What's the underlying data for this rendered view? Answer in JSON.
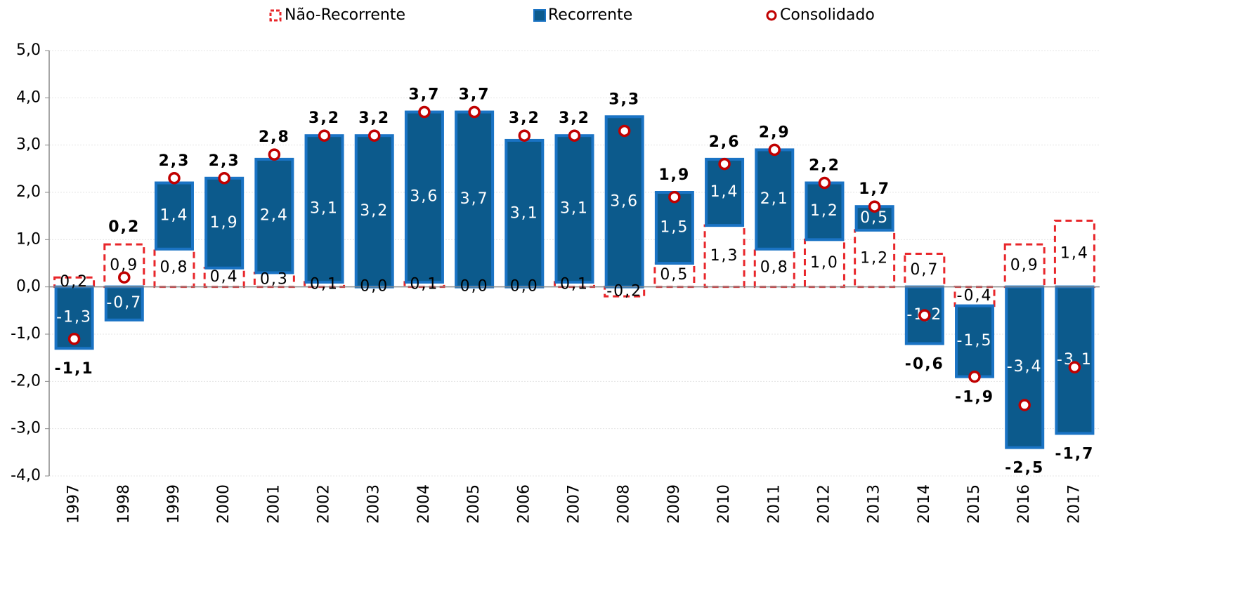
{
  "chart_data": {
    "type": "bar",
    "categories": [
      "1997",
      "1998",
      "1999",
      "2000",
      "2001",
      "2002",
      "2003",
      "2004",
      "2005",
      "2006",
      "2007",
      "2008",
      "2009",
      "2010",
      "2011",
      "2012",
      "2013",
      "2014",
      "2015",
      "2016",
      "2017"
    ],
    "series": [
      {
        "name": "Não-Recorrente",
        "color": "#e8262a",
        "values": [
          0.2,
          0.9,
          0.8,
          0.4,
          0.3,
          0.1,
          0.0,
          0.1,
          0.0,
          0.0,
          0.1,
          -0.2,
          0.5,
          1.3,
          0.8,
          1.0,
          1.2,
          0.7,
          -0.4,
          0.9,
          1.4
        ],
        "value_labels": [
          "0,2",
          "0,9",
          "0,8",
          "0,4",
          "0,3",
          "0,1",
          "0,0",
          "0,1",
          "0,0",
          "0,0",
          "0,1",
          "-0,2",
          "0,5",
          "1,3",
          "0,8",
          "1,0",
          "1,2",
          "0,7",
          "-0,4",
          "0,9",
          "1,4"
        ]
      },
      {
        "name": "Recorrente",
        "color": "#0c5a8c",
        "values": [
          -1.3,
          -0.7,
          1.4,
          1.9,
          2.4,
          3.1,
          3.2,
          3.6,
          3.7,
          3.1,
          3.1,
          3.6,
          1.5,
          1.4,
          2.1,
          1.2,
          0.5,
          -1.2,
          -1.5,
          -3.4,
          -3.1
        ],
        "value_labels": [
          "-1,3",
          "-0,7",
          "1,4",
          "1,9",
          "2,4",
          "3,1",
          "3,2",
          "3,6",
          "3,7",
          "3,1",
          "3,1",
          "3,6",
          "1,5",
          "1,4",
          "2,1",
          "1,2",
          "0,5",
          "-1,2",
          "-1,5",
          "-3,4",
          "-3,1"
        ]
      },
      {
        "name": "Consolidado",
        "color": "#c00000",
        "values": [
          -1.1,
          0.2,
          2.3,
          2.3,
          2.8,
          3.2,
          3.2,
          3.7,
          3.7,
          3.2,
          3.2,
          3.3,
          1.9,
          2.6,
          2.9,
          2.2,
          1.7,
          -0.6,
          -1.9,
          -2.5,
          -1.7
        ],
        "value_labels": [
          "-1,1",
          "0,2",
          "2,3",
          "2,3",
          "2,8",
          "3,2",
          "3,2",
          "3,7",
          "3,7",
          "3,2",
          "3,2",
          "3,3",
          "1,9",
          "2,6",
          "2,9",
          "2,2",
          "1,7",
          "-0,6",
          "-1,9",
          "-2,5",
          "-1,7"
        ]
      }
    ],
    "ylim": [
      -4,
      5
    ],
    "yticks": [
      {
        "value": -4,
        "label": "-4,0"
      },
      {
        "value": -3,
        "label": "-3,0"
      },
      {
        "value": -2,
        "label": "-2,0"
      },
      {
        "value": -1,
        "label": "-1,0"
      },
      {
        "value": 0,
        "label": "0,0"
      },
      {
        "value": 1,
        "label": "1,0"
      },
      {
        "value": 2,
        "label": "2,0"
      },
      {
        "value": 3,
        "label": "3,0"
      },
      {
        "value": 4,
        "label": "4,0"
      },
      {
        "value": 5,
        "label": "5,0"
      }
    ],
    "grid": true,
    "legend": "top"
  }
}
